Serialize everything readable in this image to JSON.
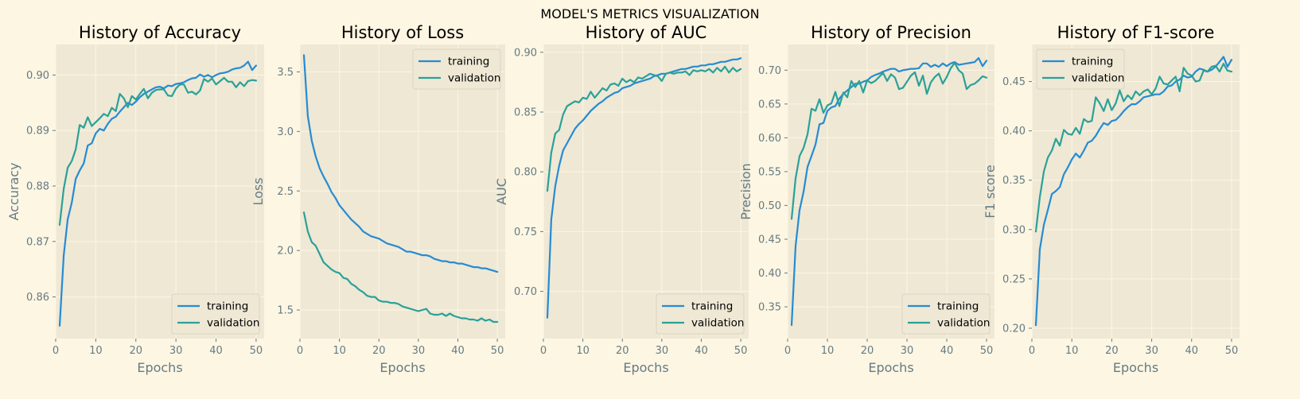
{
  "figure": {
    "suptitle": "MODEL'S METRICS VISUALIZATION",
    "colors": {
      "background": "#fdf6e3",
      "axes_face": "#eee8d5",
      "grid": "#fdf6e3",
      "training": "#268bd2",
      "validation": "#2aa198",
      "tick_text": "#657b83"
    }
  },
  "chart_data": [
    {
      "type": "line",
      "title": "History of Accuracy",
      "xlabel": "Epochs",
      "ylabel": "Accuracy",
      "xlim": [
        0,
        52
      ],
      "ylim": [
        0.8525,
        0.9055
      ],
      "xticks": [
        0,
        10,
        20,
        30,
        40,
        50
      ],
      "xtick_labels": [
        "0",
        "10",
        "20",
        "30",
        "40",
        "50"
      ],
      "yticks": [
        0.86,
        0.87,
        0.88,
        0.89,
        0.9
      ],
      "ytick_labels": [
        "0.86",
        "0.87",
        "0.88",
        "0.89",
        "0.90"
      ],
      "grid": true,
      "legend_loc": "lower-right",
      "x": [
        1,
        2,
        3,
        4,
        5,
        6,
        7,
        8,
        9,
        10,
        11,
        12,
        13,
        14,
        15,
        16,
        17,
        18,
        19,
        20,
        21,
        22,
        23,
        24,
        25,
        26,
        27,
        28,
        29,
        30,
        31,
        32,
        33,
        34,
        35,
        36,
        37,
        38,
        39,
        40,
        41,
        42,
        43,
        44,
        45,
        46,
        47,
        48,
        49,
        50
      ],
      "series": [
        {
          "name": "training",
          "values": [
            0.8548,
            0.8675,
            0.874,
            0.877,
            0.8813,
            0.8828,
            0.8841,
            0.8873,
            0.8877,
            0.8895,
            0.8903,
            0.89,
            0.8912,
            0.8921,
            0.8925,
            0.8934,
            0.8942,
            0.895,
            0.8946,
            0.8952,
            0.896,
            0.8966,
            0.897,
            0.8974,
            0.8978,
            0.8979,
            0.8976,
            0.8981,
            0.898,
            0.8984,
            0.8985,
            0.8987,
            0.8991,
            0.8994,
            0.8995,
            0.9001,
            0.8997,
            0.9,
            0.8996,
            0.9,
            0.9003,
            0.9004,
            0.9006,
            0.901,
            0.9012,
            0.9013,
            0.9017,
            0.9024,
            0.9009,
            0.9017
          ]
        },
        {
          "name": "validation",
          "values": [
            0.873,
            0.8795,
            0.8833,
            0.8845,
            0.8866,
            0.891,
            0.8905,
            0.8924,
            0.8908,
            0.8915,
            0.8922,
            0.893,
            0.8926,
            0.8941,
            0.8935,
            0.8966,
            0.8958,
            0.8942,
            0.8962,
            0.8956,
            0.8966,
            0.8975,
            0.8958,
            0.8968,
            0.8973,
            0.8974,
            0.8974,
            0.8963,
            0.8962,
            0.8976,
            0.8983,
            0.8983,
            0.8968,
            0.897,
            0.8965,
            0.8972,
            0.8993,
            0.8988,
            0.8994,
            0.8983,
            0.8989,
            0.8995,
            0.8988,
            0.8988,
            0.8978,
            0.8987,
            0.898,
            0.8989,
            0.8991,
            0.899
          ]
        }
      ]
    },
    {
      "type": "line",
      "title": "History of Loss",
      "xlabel": "Epochs",
      "ylabel": "Loss",
      "xlim": [
        0,
        52
      ],
      "ylim": [
        1.26,
        3.73
      ],
      "xticks": [
        0,
        10,
        20,
        30,
        40,
        50
      ],
      "xtick_labels": [
        "0",
        "10",
        "20",
        "30",
        "40",
        "50"
      ],
      "yticks": [
        1.5,
        2.0,
        2.5,
        3.0,
        3.5
      ],
      "ytick_labels": [
        "1.5",
        "2.0",
        "2.5",
        "3.0",
        "3.5"
      ],
      "grid": true,
      "legend_loc": "upper-right",
      "x": [
        1,
        2,
        3,
        4,
        5,
        6,
        7,
        8,
        9,
        10,
        11,
        12,
        13,
        14,
        15,
        16,
        17,
        18,
        19,
        20,
        21,
        22,
        23,
        24,
        25,
        26,
        27,
        28,
        29,
        30,
        31,
        32,
        33,
        34,
        35,
        36,
        37,
        38,
        39,
        40,
        41,
        42,
        43,
        44,
        45,
        46,
        47,
        48,
        49,
        50
      ],
      "series": [
        {
          "name": "training",
          "values": [
            3.64,
            3.13,
            2.92,
            2.79,
            2.69,
            2.62,
            2.56,
            2.49,
            2.44,
            2.38,
            2.34,
            2.3,
            2.26,
            2.23,
            2.2,
            2.16,
            2.14,
            2.12,
            2.11,
            2.1,
            2.08,
            2.06,
            2.05,
            2.04,
            2.03,
            2.01,
            1.99,
            1.99,
            1.98,
            1.97,
            1.96,
            1.96,
            1.95,
            1.93,
            1.92,
            1.91,
            1.91,
            1.9,
            1.9,
            1.89,
            1.89,
            1.88,
            1.87,
            1.86,
            1.86,
            1.85,
            1.85,
            1.84,
            1.83,
            1.82
          ]
        },
        {
          "name": "validation",
          "values": [
            2.32,
            2.16,
            2.07,
            2.04,
            1.97,
            1.9,
            1.87,
            1.84,
            1.82,
            1.81,
            1.77,
            1.76,
            1.72,
            1.7,
            1.67,
            1.65,
            1.62,
            1.61,
            1.61,
            1.58,
            1.57,
            1.57,
            1.56,
            1.56,
            1.55,
            1.53,
            1.52,
            1.51,
            1.5,
            1.49,
            1.5,
            1.51,
            1.47,
            1.46,
            1.46,
            1.47,
            1.45,
            1.47,
            1.45,
            1.44,
            1.43,
            1.43,
            1.42,
            1.42,
            1.41,
            1.43,
            1.41,
            1.42,
            1.4,
            1.4
          ]
        }
      ]
    },
    {
      "type": "line",
      "title": "History of AUC",
      "xlabel": "Epochs",
      "ylabel": "AUC",
      "xlim": [
        0,
        52
      ],
      "ylim": [
        0.6605,
        0.9065
      ],
      "xticks": [
        0,
        10,
        20,
        30,
        40,
        50
      ],
      "xtick_labels": [
        "0",
        "10",
        "20",
        "30",
        "40",
        "50"
      ],
      "yticks": [
        0.7,
        0.75,
        0.8,
        0.85,
        0.9
      ],
      "ytick_labels": [
        "0.70",
        "0.75",
        "0.80",
        "0.85",
        "0.90"
      ],
      "grid": true,
      "legend_loc": "lower-right",
      "x": [
        1,
        2,
        3,
        4,
        5,
        6,
        7,
        8,
        9,
        10,
        11,
        12,
        13,
        14,
        15,
        16,
        17,
        18,
        19,
        20,
        21,
        22,
        23,
        24,
        25,
        26,
        27,
        28,
        29,
        30,
        31,
        32,
        33,
        34,
        35,
        36,
        37,
        38,
        39,
        40,
        41,
        42,
        43,
        44,
        45,
        46,
        47,
        48,
        49,
        50
      ],
      "series": [
        {
          "name": "training",
          "values": [
            0.678,
            0.76,
            0.788,
            0.805,
            0.818,
            0.824,
            0.83,
            0.836,
            0.84,
            0.843,
            0.847,
            0.851,
            0.854,
            0.857,
            0.859,
            0.862,
            0.864,
            0.866,
            0.867,
            0.87,
            0.871,
            0.872,
            0.874,
            0.875,
            0.876,
            0.877,
            0.878,
            0.88,
            0.881,
            0.882,
            0.882,
            0.883,
            0.884,
            0.885,
            0.886,
            0.886,
            0.887,
            0.888,
            0.888,
            0.889,
            0.889,
            0.89,
            0.89,
            0.891,
            0.892,
            0.892,
            0.893,
            0.894,
            0.894,
            0.895
          ]
        },
        {
          "name": "validation",
          "values": [
            0.784,
            0.816,
            0.832,
            0.835,
            0.848,
            0.855,
            0.857,
            0.859,
            0.858,
            0.862,
            0.861,
            0.867,
            0.862,
            0.866,
            0.87,
            0.868,
            0.873,
            0.874,
            0.872,
            0.878,
            0.875,
            0.877,
            0.875,
            0.879,
            0.878,
            0.88,
            0.882,
            0.881,
            0.88,
            0.876,
            0.882,
            0.883,
            0.882,
            0.883,
            0.883,
            0.884,
            0.881,
            0.885,
            0.884,
            0.885,
            0.884,
            0.886,
            0.883,
            0.887,
            0.884,
            0.888,
            0.883,
            0.887,
            0.884,
            0.886
          ]
        }
      ]
    },
    {
      "type": "line",
      "title": "History of Precision",
      "xlabel": "Epochs",
      "ylabel": "Precision",
      "xlim": [
        0,
        52
      ],
      "ylim": [
        0.303,
        0.738
      ],
      "xticks": [
        0,
        10,
        20,
        30,
        40,
        50
      ],
      "xtick_labels": [
        "0",
        "10",
        "20",
        "30",
        "40",
        "50"
      ],
      "yticks": [
        0.35,
        0.4,
        0.45,
        0.5,
        0.55,
        0.6,
        0.65,
        0.7
      ],
      "ytick_labels": [
        "0.35",
        "0.40",
        "0.45",
        "0.50",
        "0.55",
        "0.60",
        "0.65",
        "0.70"
      ],
      "grid": true,
      "legend_loc": "lower-right",
      "x": [
        1,
        2,
        3,
        4,
        5,
        6,
        7,
        8,
        9,
        10,
        11,
        12,
        13,
        14,
        15,
        16,
        17,
        18,
        19,
        20,
        21,
        22,
        23,
        24,
        25,
        26,
        27,
        28,
        29,
        30,
        31,
        32,
        33,
        34,
        35,
        36,
        37,
        38,
        39,
        40,
        41,
        42,
        43,
        44,
        45,
        46,
        47,
        48,
        49,
        50
      ],
      "series": [
        {
          "name": "training",
          "values": [
            0.323,
            0.44,
            0.493,
            0.52,
            0.557,
            0.573,
            0.59,
            0.62,
            0.622,
            0.64,
            0.645,
            0.647,
            0.658,
            0.665,
            0.67,
            0.675,
            0.68,
            0.68,
            0.683,
            0.685,
            0.69,
            0.693,
            0.695,
            0.698,
            0.7,
            0.702,
            0.702,
            0.698,
            0.7,
            0.701,
            0.702,
            0.702,
            0.703,
            0.71,
            0.71,
            0.705,
            0.708,
            0.705,
            0.71,
            0.706,
            0.71,
            0.712,
            0.708,
            0.709,
            0.71,
            0.711,
            0.712,
            0.718,
            0.706,
            0.714
          ]
        },
        {
          "name": "validation",
          "values": [
            0.48,
            0.54,
            0.573,
            0.585,
            0.605,
            0.643,
            0.64,
            0.657,
            0.637,
            0.648,
            0.651,
            0.668,
            0.647,
            0.667,
            0.66,
            0.684,
            0.675,
            0.684,
            0.667,
            0.685,
            0.681,
            0.684,
            0.69,
            0.696,
            0.684,
            0.694,
            0.689,
            0.672,
            0.674,
            0.683,
            0.692,
            0.697,
            0.677,
            0.692,
            0.665,
            0.682,
            0.69,
            0.695,
            0.68,
            0.69,
            0.703,
            0.711,
            0.7,
            0.695,
            0.672,
            0.678,
            0.68,
            0.685,
            0.691,
            0.689
          ]
        }
      ]
    },
    {
      "type": "line",
      "title": "History of F1-score",
      "xlabel": "Epochs",
      "ylabel": "F1 score",
      "xlim": [
        0,
        52
      ],
      "ylim": [
        0.1895,
        0.4875
      ],
      "xticks": [
        0,
        10,
        20,
        30,
        40,
        50
      ],
      "xtick_labels": [
        "0",
        "10",
        "20",
        "30",
        "40",
        "50"
      ],
      "yticks": [
        0.2,
        0.25,
        0.3,
        0.35,
        0.4,
        0.45
      ],
      "ytick_labels": [
        "0.20",
        "0.25",
        "0.30",
        "0.35",
        "0.40",
        "0.45"
      ],
      "grid": true,
      "legend_loc": "upper-left",
      "x": [
        1,
        2,
        3,
        4,
        5,
        6,
        7,
        8,
        9,
        10,
        11,
        12,
        13,
        14,
        15,
        16,
        17,
        18,
        19,
        20,
        21,
        22,
        23,
        24,
        25,
        26,
        27,
        28,
        29,
        30,
        31,
        32,
        33,
        34,
        35,
        36,
        37,
        38,
        39,
        40,
        41,
        42,
        43,
        44,
        45,
        46,
        47,
        48,
        49,
        50
      ],
      "series": [
        {
          "name": "training",
          "values": [
            0.203,
            0.28,
            0.305,
            0.32,
            0.336,
            0.339,
            0.343,
            0.356,
            0.363,
            0.371,
            0.377,
            0.373,
            0.38,
            0.388,
            0.39,
            0.395,
            0.402,
            0.408,
            0.406,
            0.41,
            0.411,
            0.415,
            0.42,
            0.424,
            0.427,
            0.427,
            0.43,
            0.434,
            0.435,
            0.436,
            0.437,
            0.437,
            0.44,
            0.445,
            0.446,
            0.45,
            0.452,
            0.456,
            0.454,
            0.455,
            0.46,
            0.463,
            0.462,
            0.46,
            0.462,
            0.465,
            0.47,
            0.475,
            0.465,
            0.472
          ]
        },
        {
          "name": "validation",
          "values": [
            0.298,
            0.333,
            0.359,
            0.373,
            0.38,
            0.392,
            0.385,
            0.401,
            0.397,
            0.396,
            0.403,
            0.397,
            0.412,
            0.409,
            0.41,
            0.434,
            0.428,
            0.42,
            0.432,
            0.421,
            0.428,
            0.441,
            0.43,
            0.436,
            0.432,
            0.44,
            0.436,
            0.44,
            0.442,
            0.437,
            0.443,
            0.455,
            0.448,
            0.447,
            0.451,
            0.455,
            0.44,
            0.464,
            0.458,
            0.456,
            0.45,
            0.451,
            0.461,
            0.46,
            0.465,
            0.466,
            0.46,
            0.468,
            0.461,
            0.46
          ]
        }
      ]
    }
  ]
}
